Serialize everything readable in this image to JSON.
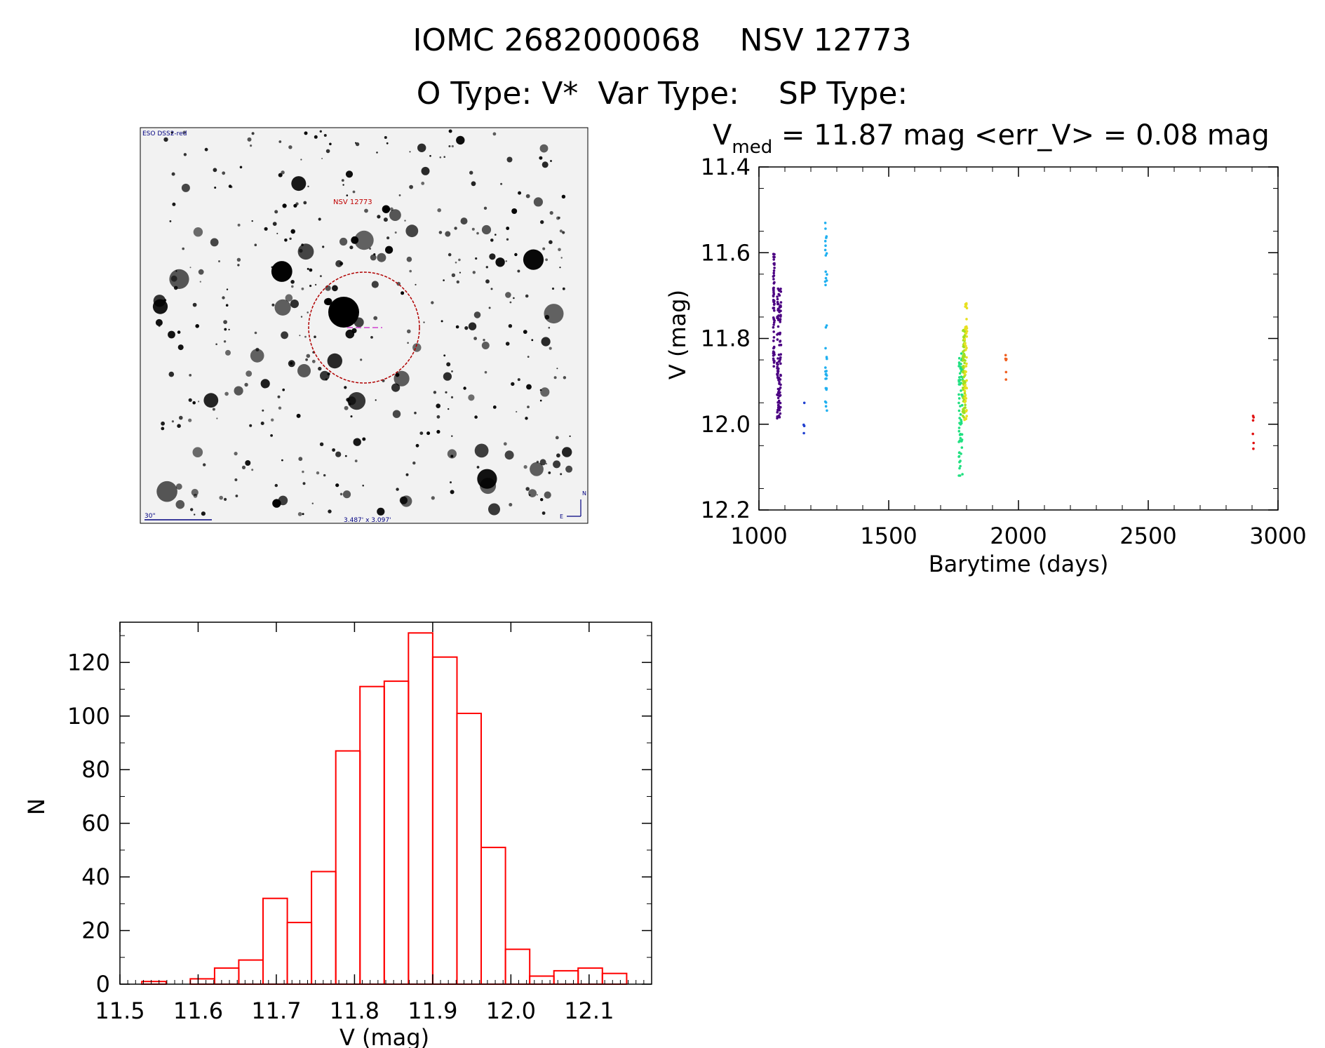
{
  "header": {
    "title": "IOMC 2682000068    NSV 12773",
    "subtitle": "O Type: V*  Var Type:    SP Type:"
  },
  "sky_image": {
    "survey_label": "ESO DSS2-red",
    "target_label": "NSV 12773",
    "scale_label": "30\"",
    "size_label": "3.487' x 3.097'",
    "north_label": "N",
    "east_label": "E"
  },
  "chart_data": [
    {
      "type": "scatter",
      "title_prefix": "V",
      "title_sub": "med",
      "title_rest": " = 11.87 mag <err_V> = 0.08 mag",
      "xlabel": "Barytime (days)",
      "ylabel": "V (mag)",
      "xlim": [
        1000,
        3000
      ],
      "ylim": [
        12.2,
        11.4
      ],
      "y_inverted": true,
      "xticks": [
        1000,
        1500,
        2000,
        2500,
        3000
      ],
      "yticks": [
        "11.4",
        "11.6",
        "11.8",
        "12.0",
        "12.2"
      ],
      "grid": false,
      "groups": [
        {
          "color": "#4b0082",
          "x_range": [
            1055,
            1060
          ],
          "y_range": [
            11.6,
            11.87
          ],
          "n": 60
        },
        {
          "color": "#4b0082",
          "x_range": [
            1070,
            1085
          ],
          "y_range": [
            11.68,
            11.99
          ],
          "n": 120
        },
        {
          "color": "#2040d0",
          "x_range": [
            1172,
            1180
          ],
          "y_range": [
            11.93,
            12.05
          ],
          "n": 4
        },
        {
          "color": "#20b0f0",
          "x_range": [
            1255,
            1262
          ],
          "y_range": [
            11.53,
            11.98
          ],
          "n": 35
        },
        {
          "color": "#20e080",
          "x_range": [
            1770,
            1785
          ],
          "y_range": [
            11.82,
            12.12
          ],
          "n": 70
        },
        {
          "color": "#a0e020",
          "x_range": [
            1785,
            1795
          ],
          "y_range": [
            11.78,
            11.99
          ],
          "n": 80
        },
        {
          "color": "#e8e020",
          "x_range": [
            1792,
            1802
          ],
          "y_range": [
            11.71,
            11.99
          ],
          "n": 50
        },
        {
          "color": "#f06020",
          "x_range": [
            1948,
            1955
          ],
          "y_range": [
            11.83,
            11.9
          ],
          "n": 6
        },
        {
          "color": "#e01010",
          "x_range": [
            2903,
            2908
          ],
          "y_range": [
            11.97,
            12.06
          ],
          "n": 6
        }
      ]
    },
    {
      "type": "bar",
      "xlabel": "V (mag)",
      "ylabel": "N",
      "xlim": [
        11.5,
        12.18
      ],
      "ylim": [
        0,
        135
      ],
      "xticks": [
        "11.5",
        "11.6",
        "11.7",
        "11.8",
        "11.9",
        "12.0",
        "12.1"
      ],
      "yticks": [
        "0",
        "20",
        "40",
        "60",
        "80",
        "100",
        "120"
      ],
      "bar_color": "#ff0000",
      "bin_width": 0.031,
      "bin_start": 11.528,
      "values": [
        1,
        0,
        2,
        6,
        9,
        32,
        23,
        42,
        87,
        111,
        113,
        131,
        122,
        101,
        51,
        13,
        3,
        5,
        6,
        4
      ]
    }
  ]
}
